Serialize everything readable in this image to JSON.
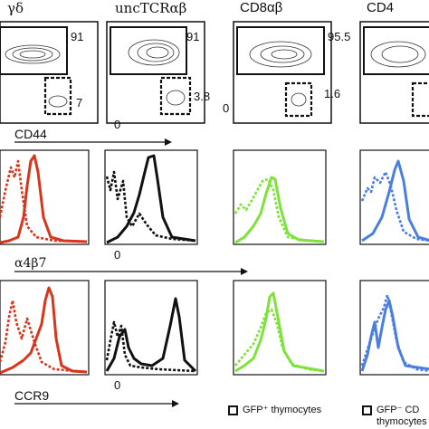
{
  "columns": [
    {
      "id": "gd",
      "header": "γδ",
      "gate_hi": "91",
      "gate_lo": "7",
      "color_key": "red"
    },
    {
      "id": "unc",
      "header": "uncTCRαβ",
      "gate_hi": "91",
      "gate_lo": "3.8",
      "color_key": "black"
    },
    {
      "id": "cd8",
      "header": "CD8αβ",
      "gate_hi": "95.5",
      "gate_lo": "1.6",
      "color_key": "green"
    },
    {
      "id": "cd4",
      "header": "CD4",
      "gate_hi": "",
      "gate_lo": "",
      "color_key": "blue"
    }
  ],
  "axis_labels": {
    "row1_zero": "0",
    "row1_y_zero": "0",
    "cd44": "CD44",
    "cd44_zero": "0",
    "a4b7": "α4β7",
    "a4b7_zero": "0",
    "ccr9": "CCR9",
    "ccr9_zero": "0"
  },
  "legend": {
    "solid_label": "GFP⁺ thymocytes",
    "dashed_label_line1": "GFP⁻ CD",
    "dashed_label_line2": "thymocytes"
  },
  "colors": {
    "red": "#d9341c",
    "black": "#111111",
    "green": "#7de33a",
    "blue": "#4a7fe0"
  },
  "chart_data": {
    "type": "histogram",
    "rows": [
      "CD44",
      "α4β7",
      "CCR9"
    ],
    "series_types": [
      "GFP+ thymocytes (solid)",
      "GFP- CD thymocytes (dashed)"
    ]
  }
}
